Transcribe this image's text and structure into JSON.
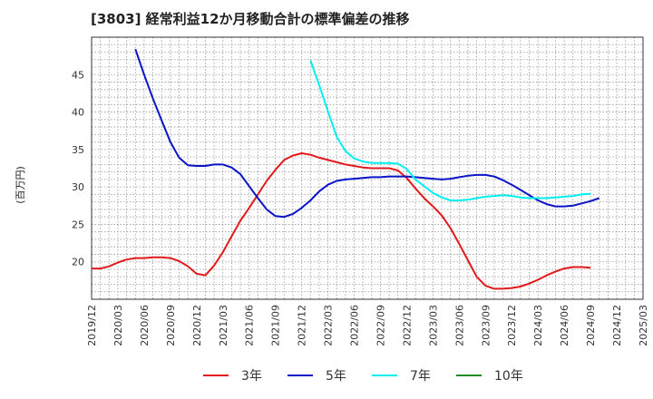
{
  "chart_data": {
    "type": "line",
    "title": "[3803]  経常利益12か月移動合計の標準偏差の推移",
    "ylabel": "(百万円)",
    "xlabel": "",
    "ylim": [
      15,
      50
    ],
    "yticks": [
      20,
      25,
      30,
      35,
      40,
      45
    ],
    "xticks": [
      "2019/12",
      "2020/03",
      "2020/06",
      "2020/09",
      "2020/12",
      "2021/03",
      "2021/06",
      "2021/09",
      "2021/12",
      "2022/03",
      "2022/06",
      "2022/09",
      "2022/12",
      "2023/03",
      "2023/06",
      "2023/09",
      "2023/12",
      "2024/03",
      "2024/06",
      "2024/09",
      "2024/12",
      "2025/03"
    ],
    "grid": true,
    "legend_position": "bottom",
    "series": [
      {
        "name": "3年",
        "color": "#e31a1c",
        "points": [
          [
            0,
            19.1
          ],
          [
            1,
            19.1
          ],
          [
            2,
            19.4
          ],
          [
            3,
            19.9
          ],
          [
            4,
            20.3
          ],
          [
            5,
            20.5
          ],
          [
            6,
            20.5
          ],
          [
            7,
            20.6
          ],
          [
            8,
            20.6
          ],
          [
            9,
            20.5
          ],
          [
            10,
            20.1
          ],
          [
            11,
            19.4
          ],
          [
            12,
            18.4
          ],
          [
            13,
            18.2
          ],
          [
            14,
            19.5
          ],
          [
            15,
            21.3
          ],
          [
            16,
            23.4
          ],
          [
            17,
            25.5
          ],
          [
            18,
            27.2
          ],
          [
            19,
            29.0
          ],
          [
            20,
            30.8
          ],
          [
            21,
            32.3
          ],
          [
            22,
            33.6
          ],
          [
            23,
            34.2
          ],
          [
            24,
            34.5
          ],
          [
            25,
            34.3
          ],
          [
            26,
            33.9
          ],
          [
            27,
            33.6
          ],
          [
            28,
            33.3
          ],
          [
            29,
            33.0
          ],
          [
            30,
            32.8
          ],
          [
            31,
            32.6
          ],
          [
            32,
            32.5
          ],
          [
            33,
            32.5
          ],
          [
            34,
            32.5
          ],
          [
            35,
            32.2
          ],
          [
            36,
            31.2
          ],
          [
            37,
            29.8
          ],
          [
            38,
            28.5
          ],
          [
            39,
            27.4
          ],
          [
            40,
            26.2
          ],
          [
            41,
            24.5
          ],
          [
            42,
            22.4
          ],
          [
            43,
            20.2
          ],
          [
            44,
            18.0
          ],
          [
            45,
            16.8
          ],
          [
            46,
            16.4
          ],
          [
            47,
            16.4
          ],
          [
            48,
            16.5
          ],
          [
            49,
            16.7
          ],
          [
            50,
            17.1
          ],
          [
            51,
            17.6
          ],
          [
            52,
            18.2
          ],
          [
            53,
            18.7
          ],
          [
            54,
            19.1
          ],
          [
            55,
            19.3
          ],
          [
            56,
            19.3
          ],
          [
            57,
            19.2
          ]
        ]
      },
      {
        "name": "5年",
        "color": "#0a14c8",
        "points": [
          [
            5,
            48.4
          ],
          [
            6,
            45.0
          ],
          [
            7,
            41.8
          ],
          [
            8,
            38.9
          ],
          [
            9,
            36.0
          ],
          [
            10,
            33.9
          ],
          [
            11,
            32.9
          ],
          [
            12,
            32.8
          ],
          [
            13,
            32.8
          ],
          [
            14,
            33.0
          ],
          [
            15,
            33.0
          ],
          [
            16,
            32.6
          ],
          [
            17,
            31.7
          ],
          [
            18,
            30.1
          ],
          [
            19,
            28.5
          ],
          [
            20,
            27.0
          ],
          [
            21,
            26.1
          ],
          [
            22,
            26.0
          ],
          [
            23,
            26.4
          ],
          [
            24,
            27.2
          ],
          [
            25,
            28.2
          ],
          [
            26,
            29.4
          ],
          [
            27,
            30.3
          ],
          [
            28,
            30.8
          ],
          [
            29,
            31.0
          ],
          [
            30,
            31.1
          ],
          [
            31,
            31.2
          ],
          [
            32,
            31.3
          ],
          [
            33,
            31.3
          ],
          [
            34,
            31.4
          ],
          [
            35,
            31.4
          ],
          [
            36,
            31.4
          ],
          [
            37,
            31.3
          ],
          [
            38,
            31.2
          ],
          [
            39,
            31.1
          ],
          [
            40,
            31.0
          ],
          [
            41,
            31.1
          ],
          [
            42,
            31.3
          ],
          [
            43,
            31.5
          ],
          [
            44,
            31.6
          ],
          [
            45,
            31.6
          ],
          [
            46,
            31.4
          ],
          [
            47,
            30.9
          ],
          [
            48,
            30.3
          ],
          [
            49,
            29.6
          ],
          [
            50,
            28.9
          ],
          [
            51,
            28.2
          ],
          [
            52,
            27.7
          ],
          [
            53,
            27.4
          ],
          [
            54,
            27.4
          ],
          [
            55,
            27.5
          ],
          [
            56,
            27.8
          ],
          [
            57,
            28.1
          ],
          [
            58,
            28.5
          ]
        ]
      },
      {
        "name": "7年",
        "color": "#00f0f0",
        "points": [
          [
            25,
            46.9
          ],
          [
            26,
            43.6
          ],
          [
            27,
            40.1
          ],
          [
            28,
            36.7
          ],
          [
            29,
            34.8
          ],
          [
            30,
            33.8
          ],
          [
            31,
            33.4
          ],
          [
            32,
            33.2
          ],
          [
            33,
            33.2
          ],
          [
            34,
            33.2
          ],
          [
            35,
            33.1
          ],
          [
            36,
            32.4
          ],
          [
            37,
            31.0
          ],
          [
            38,
            30.1
          ],
          [
            39,
            29.2
          ],
          [
            40,
            28.6
          ],
          [
            41,
            28.2
          ],
          [
            42,
            28.2
          ],
          [
            43,
            28.3
          ],
          [
            44,
            28.5
          ],
          [
            45,
            28.7
          ],
          [
            46,
            28.8
          ],
          [
            47,
            28.9
          ],
          [
            48,
            28.8
          ],
          [
            49,
            28.6
          ],
          [
            50,
            28.5
          ],
          [
            51,
            28.5
          ],
          [
            52,
            28.5
          ],
          [
            53,
            28.6
          ],
          [
            54,
            28.7
          ],
          [
            55,
            28.8
          ],
          [
            56,
            29.0
          ],
          [
            57,
            29.1
          ]
        ]
      },
      {
        "name": "10年",
        "color": "#228b22",
        "points": []
      }
    ]
  }
}
